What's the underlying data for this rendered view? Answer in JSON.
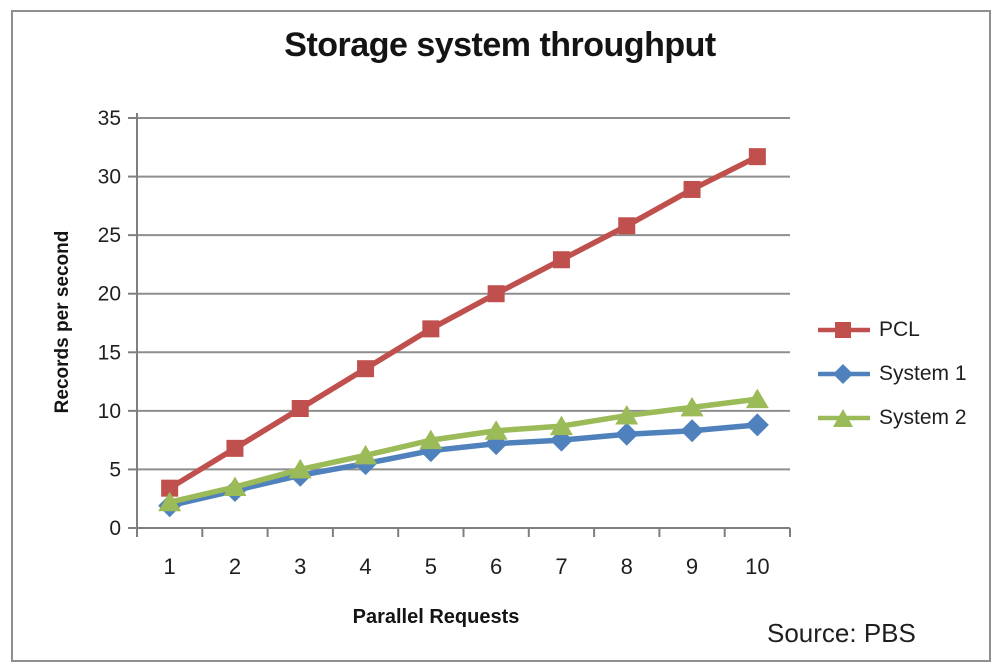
{
  "chart_data": {
    "type": "line",
    "title": "Storage system throughput",
    "xlabel": "Parallel Requests",
    "ylabel": "Records per second",
    "source_note": "Source: PBS",
    "categories": [
      "1",
      "2",
      "3",
      "4",
      "5",
      "6",
      "7",
      "8",
      "9",
      "10"
    ],
    "yticks": [
      0,
      5,
      10,
      15,
      20,
      25,
      30,
      35
    ],
    "ylim": [
      0,
      35
    ],
    "grid": true,
    "legend_position": "right",
    "series": [
      {
        "name": "PCL",
        "marker": "square",
        "color": "#C0504D",
        "values": [
          3.4,
          6.8,
          10.2,
          13.6,
          17,
          20,
          22.9,
          25.8,
          28.9,
          31.7
        ]
      },
      {
        "name": "System 1",
        "marker": "diamond",
        "color": "#4F81BD",
        "values": [
          1.9,
          3.2,
          4.5,
          5.5,
          6.6,
          7.2,
          7.5,
          8,
          8.3,
          8.8
        ]
      },
      {
        "name": "System 2",
        "marker": "triangle",
        "color": "#9BBB59",
        "values": [
          2.2,
          3.5,
          5,
          6.2,
          7.5,
          8.3,
          8.7,
          9.6,
          10.3,
          11
        ]
      }
    ]
  },
  "colors": {
    "gridline": "#8E8E8E",
    "axis": "#7F7F7F",
    "tick_text": "#1F1F1F",
    "frame_border": "#8F8F8F"
  }
}
